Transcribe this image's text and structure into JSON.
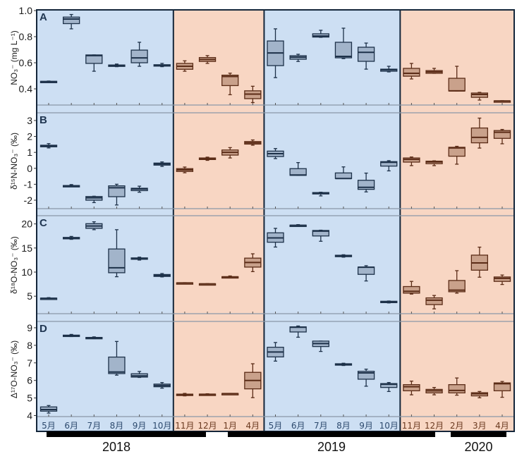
{
  "chart_data": {
    "type": "box",
    "categories": [
      "5月",
      "6月",
      "7月",
      "8月",
      "9月",
      "10月",
      "11月",
      "12月",
      "1月",
      "4月",
      "5月",
      "6月",
      "7月",
      "8月",
      "9月",
      "10月",
      "11月",
      "12月",
      "2月",
      "3月",
      "4月"
    ],
    "category_group": [
      "blue",
      "blue",
      "blue",
      "blue",
      "blue",
      "blue",
      "orange",
      "orange",
      "orange",
      "orange",
      "blue",
      "blue",
      "blue",
      "blue",
      "blue",
      "blue",
      "orange",
      "orange",
      "orange",
      "orange",
      "orange"
    ],
    "colors": {
      "blue": {
        "bg": "#cddff3",
        "fill": "#a2b4ca",
        "stroke": "#1d3149"
      },
      "orange": {
        "bg": "#f8d6c3",
        "fill": "#c9a18b",
        "stroke": "#5b2c17"
      }
    },
    "years": [
      {
        "label": "2018",
        "from": 0,
        "to": 7
      },
      {
        "label": "2019",
        "from": 8,
        "to": 17
      },
      {
        "label": "2020",
        "from": 18,
        "to": 20
      }
    ],
    "box_format": [
      "min",
      "q1",
      "median",
      "q3",
      "max"
    ],
    "panels": [
      {
        "letter": "A",
        "ylabel": "NO₃⁻ (mg L⁻¹)",
        "ylim": [
          0.276,
          1.0
        ],
        "yticks": [
          0.4,
          0.6,
          0.8,
          1.0
        ],
        "ytick_labels": [
          "0.4",
          "0.6",
          "0.8",
          "1.0"
        ],
        "boxes": [
          [
            0.45,
            0.452,
            0.455,
            0.458,
            0.46
          ],
          [
            0.86,
            0.9,
            0.935,
            0.95,
            0.97
          ],
          [
            0.535,
            0.595,
            0.655,
            0.66,
            0.66
          ],
          [
            0.57,
            0.572,
            0.578,
            0.583,
            0.59
          ],
          [
            0.573,
            0.6,
            0.637,
            0.697,
            0.757
          ],
          [
            0.57,
            0.575,
            0.58,
            0.585,
            0.595
          ],
          [
            0.535,
            0.55,
            0.573,
            0.595,
            0.615
          ],
          [
            0.595,
            0.61,
            0.625,
            0.64,
            0.655
          ],
          [
            0.355,
            0.425,
            0.495,
            0.505,
            0.52
          ],
          [
            0.295,
            0.325,
            0.36,
            0.385,
            0.42
          ],
          [
            0.486,
            0.578,
            0.675,
            0.767,
            0.86
          ],
          [
            0.61,
            0.627,
            0.643,
            0.654,
            0.665
          ],
          [
            0.795,
            0.797,
            0.805,
            0.822,
            0.849
          ],
          [
            0.632,
            0.638,
            0.649,
            0.757,
            0.865
          ],
          [
            0.551,
            0.611,
            0.68,
            0.719,
            0.751
          ],
          [
            0.53,
            0.535,
            0.546,
            0.551,
            0.573
          ],
          [
            0.476,
            0.497,
            0.519,
            0.557,
            0.595
          ],
          [
            0.519,
            0.519,
            0.53,
            0.54,
            0.557
          ],
          [
            0.384,
            0.384,
            0.385,
            0.481,
            0.573
          ],
          [
            0.314,
            0.335,
            0.357,
            0.368,
            0.373
          ],
          [
            0.305,
            0.306,
            0.307,
            0.308,
            0.309
          ]
        ]
      },
      {
        "letter": "B",
        "ylabel": "δ¹⁵N-NO₃⁻ (‰)",
        "ylim": [
          -2.53,
          3.44
        ],
        "yticks": [
          -2,
          -1,
          0,
          1,
          2,
          3
        ],
        "ytick_labels": [
          "-2",
          "-1",
          "0",
          "1",
          "2",
          "3"
        ],
        "boxes": [
          [
            1.28,
            1.35,
            1.4,
            1.45,
            1.55
          ],
          [
            -1.15,
            -1.13,
            -1.1,
            -1.08,
            -1.02
          ],
          [
            -2.15,
            -2.0,
            -1.85,
            -1.77,
            -1.75
          ],
          [
            -2.3,
            -1.78,
            -1.22,
            -1.1,
            -1.0
          ],
          [
            -1.5,
            -1.4,
            -1.3,
            -1.25,
            -1.12
          ],
          [
            0.12,
            0.2,
            0.27,
            0.33,
            0.4
          ],
          [
            -0.28,
            -0.2,
            -0.1,
            -0.02,
            0.08
          ],
          [
            0.5,
            0.55,
            0.6,
            0.65,
            0.7
          ],
          [
            0.65,
            0.83,
            1.0,
            1.15,
            1.3
          ],
          [
            1.45,
            1.52,
            1.6,
            1.68,
            1.78
          ],
          [
            0.61,
            0.74,
            0.92,
            1.08,
            1.24
          ],
          [
            -0.44,
            -0.44,
            -0.42,
            -0.02,
            0.36
          ],
          [
            -1.73,
            -1.6,
            -1.57,
            -1.52,
            -1.5
          ],
          [
            -0.64,
            -0.64,
            -0.64,
            -0.29,
            0.09
          ],
          [
            -1.48,
            -1.32,
            -1.19,
            -0.75,
            -0.3
          ],
          [
            -0.16,
            0.14,
            0.38,
            0.42,
            0.48
          ],
          [
            0.17,
            0.39,
            0.56,
            0.65,
            0.71
          ],
          [
            0.17,
            0.29,
            0.4,
            0.45,
            0.47
          ],
          [
            0.26,
            0.76,
            1.28,
            1.32,
            1.38
          ],
          [
            1.27,
            1.6,
            1.94,
            2.53,
            3.15
          ],
          [
            1.54,
            1.88,
            2.26,
            2.37,
            2.44
          ]
        ]
      },
      {
        "letter": "C",
        "ylabel": "δ¹⁸O-NO₃⁻ (‰)",
        "ylim": [
          1.37,
          21.56
        ],
        "yticks": [
          5,
          10,
          15,
          20
        ],
        "ytick_labels": [
          "5",
          "10",
          "15",
          "20"
        ],
        "boxes": [
          [
            4.4,
            4.5,
            4.55,
            4.6,
            4.7
          ],
          [
            16.8,
            16.9,
            17.05,
            17.2,
            17.4
          ],
          [
            18.8,
            19.08,
            19.56,
            20.05,
            20.44
          ],
          [
            9.04,
            9.87,
            10.9,
            14.8,
            18.8
          ],
          [
            12.5,
            12.7,
            12.85,
            12.95,
            13.1
          ],
          [
            9.0,
            9.1,
            9.3,
            9.5,
            9.7
          ],
          [
            7.7,
            7.72,
            7.75,
            7.78,
            7.8
          ],
          [
            7.5,
            7.52,
            7.55,
            7.58,
            7.6
          ],
          [
            8.9,
            8.95,
            9.0,
            9.05,
            9.2
          ],
          [
            10.1,
            11.04,
            12.0,
            12.9,
            13.8
          ],
          [
            15.2,
            16.2,
            17.1,
            18.15,
            19.08
          ],
          [
            19.5,
            19.6,
            19.7,
            19.75,
            19.85
          ],
          [
            16.4,
            17.5,
            18.5,
            18.64,
            18.7
          ],
          [
            13.1,
            13.2,
            13.4,
            13.5,
            13.6
          ],
          [
            8.16,
            9.53,
            11.0,
            11.04,
            11.33
          ],
          [
            3.6,
            3.7,
            3.85,
            3.95,
            4.0
          ],
          [
            5.44,
            5.63,
            6.02,
            7.0,
            8.07
          ],
          [
            2.37,
            3.25,
            4.17,
            4.65,
            5.15
          ],
          [
            5.63,
            5.92,
            6.26,
            8.26,
            10.3
          ],
          [
            8.94,
            10.4,
            11.9,
            13.52,
            15.18
          ],
          [
            7.43,
            8.07,
            8.7,
            8.99,
            9.39
          ]
        ]
      },
      {
        "letter": "D",
        "ylabel": "Δ¹⁷O-NO₃⁻ (‰)",
        "ylim": [
          3.94,
          9.32
        ],
        "yticks": [
          4,
          5,
          6,
          7,
          8,
          9
        ],
        "ytick_labels": [
          "4",
          "5",
          "6",
          "7",
          "8",
          "9"
        ],
        "boxes": [
          [
            4.14,
            4.25,
            4.34,
            4.49,
            4.57
          ],
          [
            8.5,
            8.52,
            8.55,
            8.58,
            8.62
          ],
          [
            8.38,
            8.4,
            8.42,
            8.45,
            8.48
          ],
          [
            6.3,
            6.39,
            6.48,
            7.33,
            8.22
          ],
          [
            6.17,
            6.19,
            6.26,
            6.38,
            6.51
          ],
          [
            5.56,
            5.64,
            5.71,
            5.79,
            5.88
          ],
          [
            5.12,
            5.15,
            5.18,
            5.22,
            5.26
          ],
          [
            5.18,
            5.2,
            5.21,
            5.22,
            5.24
          ],
          [
            5.24,
            5.245,
            5.25,
            5.255,
            5.26
          ],
          [
            5.02,
            5.52,
            6.0,
            6.46,
            6.95
          ],
          [
            7.1,
            7.34,
            7.62,
            7.89,
            8.16
          ],
          [
            8.46,
            8.76,
            9.03,
            9.05,
            9.1
          ],
          [
            7.65,
            7.93,
            8.1,
            8.24,
            8.24
          ],
          [
            6.85,
            6.88,
            6.92,
            6.95,
            6.98
          ],
          [
            5.67,
            6.07,
            6.43,
            6.52,
            6.64
          ],
          [
            5.37,
            5.6,
            5.78,
            5.82,
            5.88
          ],
          [
            5.18,
            5.41,
            5.64,
            5.76,
            5.96
          ],
          [
            5.18,
            5.29,
            5.41,
            5.49,
            5.6
          ],
          [
            5.16,
            5.29,
            5.43,
            5.76,
            6.14
          ],
          [
            5.01,
            5.12,
            5.24,
            5.3,
            5.37
          ],
          [
            5.04,
            5.41,
            5.81,
            5.86,
            5.94
          ]
        ]
      }
    ]
  }
}
